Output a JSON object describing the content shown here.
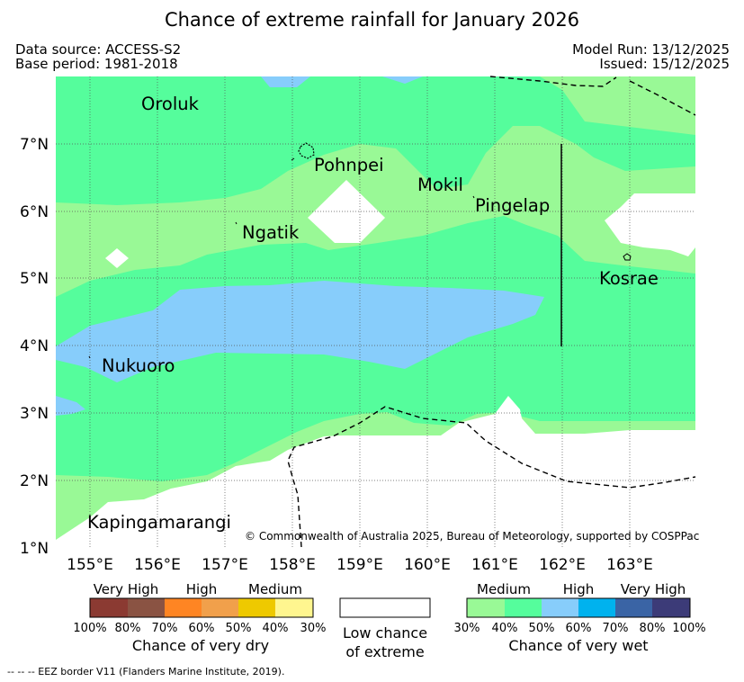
{
  "title": "Chance of extreme rainfall for January 2026",
  "header": {
    "data_source": "Data source: ACCESS-S2",
    "base_period": "Base period: 1981-2018",
    "model_run": "Model Run: 13/12/2025",
    "issued": "Issued: 15/12/2025"
  },
  "map": {
    "lat_labels": [
      "7°N",
      "6°N",
      "5°N",
      "4°N",
      "3°N",
      "2°N",
      "1°N"
    ],
    "lon_labels": [
      "155°E",
      "156°E",
      "157°E",
      "158°E",
      "159°E",
      "160°E",
      "161°E",
      "162°E",
      "163°E"
    ],
    "places": {
      "oroluk": "Oroluk",
      "pohnpei": "Pohnpei",
      "mokil": "Mokil",
      "pingelap": "Pingelap",
      "ngatik": "Ngatik",
      "kosrae": "Kosrae",
      "nukuoro": "Nukuoro",
      "kapingamarangi": "Kapingamarangi"
    },
    "copyright": "© Commonwealth of Australia 2025, Bureau of Meteorology, supported by COSPPac",
    "colors": {
      "medium_wet": "#99f996",
      "high_wet": "#55fd9c",
      "very_high_wet": "#87cdfb",
      "low": "#ffffff"
    }
  },
  "legend": {
    "dry": {
      "labels": {
        "very_high": "Very High",
        "high": "High",
        "medium": "Medium"
      },
      "ticks": [
        "100%",
        "80%",
        "70%",
        "60%",
        "50%",
        "40%",
        "30%"
      ],
      "colors": [
        "#8b3a32",
        "#8a5343",
        "#fe8523",
        "#f1a04b",
        "#eec900",
        "#fff68f"
      ],
      "title": "Chance of very dry"
    },
    "low": {
      "line1": "Low chance",
      "line2": "of extreme"
    },
    "wet": {
      "labels": {
        "medium": "Medium",
        "high": "High",
        "very_high": "Very High"
      },
      "ticks": [
        "30%",
        "40%",
        "50%",
        "60%",
        "70%",
        "80%",
        "100%"
      ],
      "colors": [
        "#99f996",
        "#55fd9c",
        "#87cdfb",
        "#00b2ee",
        "#3a64a5",
        "#3c3b78"
      ],
      "title": "Chance of very wet"
    }
  },
  "footer": "--  --  -- EEZ border V11 (Flanders Marine Institute, 2019)."
}
